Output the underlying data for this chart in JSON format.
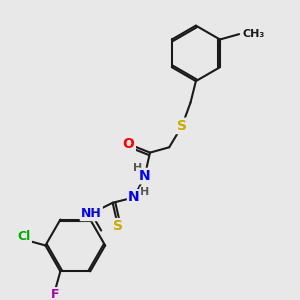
{
  "bg_color": "#e8e8e8",
  "bond_color": "#1a1a1a",
  "bond_width": 1.5,
  "atom_colors": {
    "O": "#ff0000",
    "N": "#0000ff",
    "S": "#ccaa00",
    "Cl": "#00aa00",
    "F": "#aa00aa",
    "C": "#1a1a1a",
    "H": "#555555"
  },
  "font_size": 9,
  "fig_size": [
    3.0,
    3.0
  ],
  "dpi": 100
}
